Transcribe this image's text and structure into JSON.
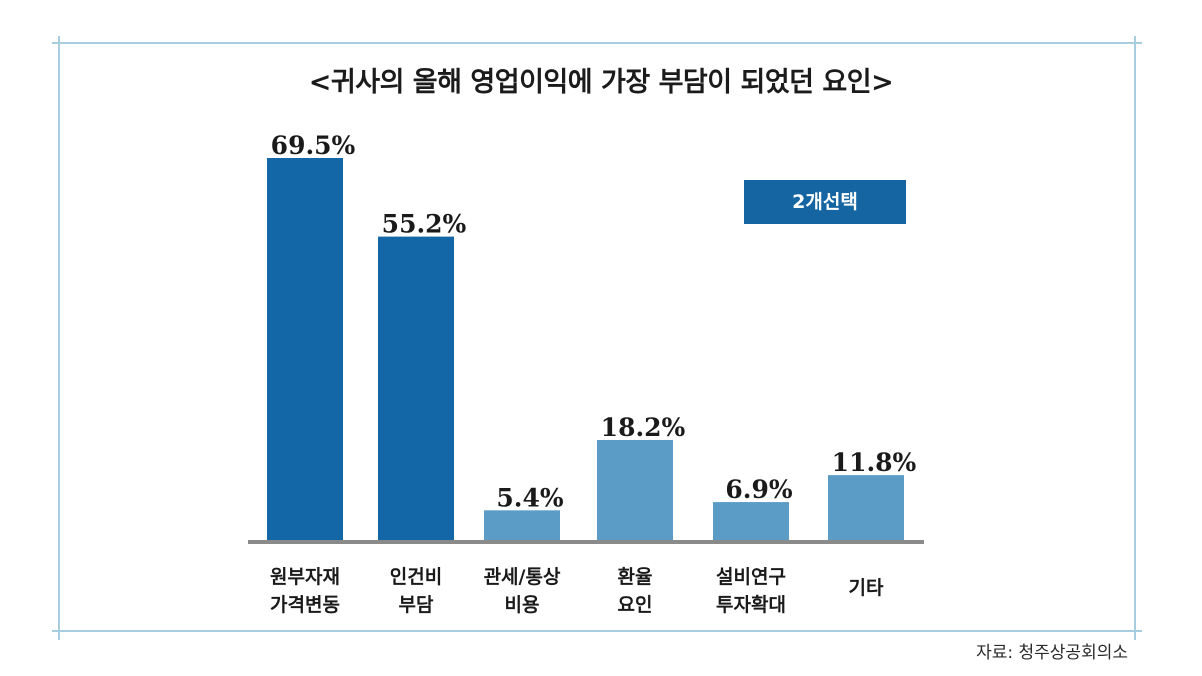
{
  "title": "<귀사의 올해 영업이익에 가장 부담이 되었던 요인>",
  "badge": "2개선택",
  "source": "자료: 청주상공회의소",
  "colors": {
    "dark_bar": "#1367a6",
    "light_bar": "#5b9cc6",
    "baseline": "#8a8a8a",
    "frame": "#a8cde0"
  },
  "chart_data": {
    "type": "bar",
    "title": "<귀사의 올해 영업이익에 가장 부담이 되었던 요인>",
    "unit": "%",
    "categories": [
      [
        "원부자재",
        "가격변동"
      ],
      [
        "인건비",
        "부담"
      ],
      [
        "관세/통상",
        "비용"
      ],
      [
        "환율",
        "요인"
      ],
      [
        "설비연구",
        "투자확대"
      ],
      [
        "기타"
      ]
    ],
    "values": [
      69.5,
      55.2,
      5.4,
      18.2,
      6.9,
      11.8
    ],
    "value_labels": [
      "69.5%",
      "55.2%",
      "5.4%",
      "18.2%",
      "6.9%",
      "11.8%"
    ],
    "highlighted": [
      true,
      true,
      false,
      false,
      false,
      false
    ],
    "ylim": [
      0,
      70
    ],
    "grid": false,
    "legend": "none"
  }
}
